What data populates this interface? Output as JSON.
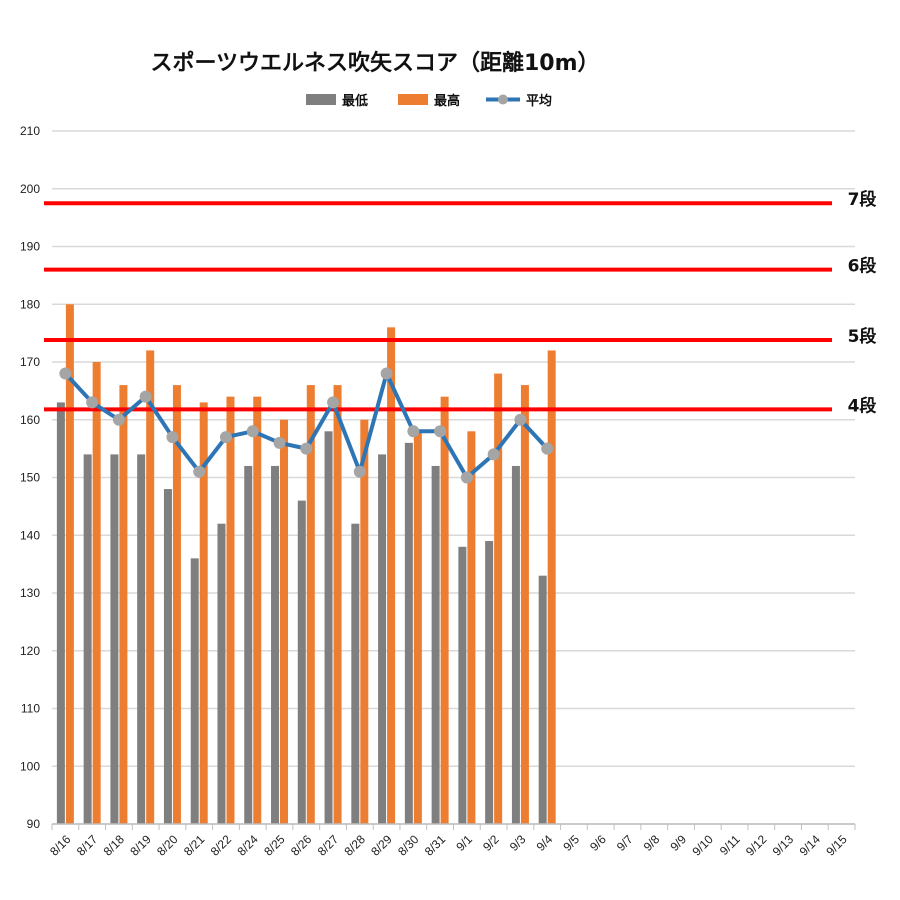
{
  "chart_data": {
    "type": "bar",
    "title": "スポーツウエルネス吹矢スコア（距離10m）",
    "categories": [
      "8/16",
      "8/17",
      "8/18",
      "8/19",
      "8/20",
      "8/21",
      "8/22",
      "8/24",
      "8/25",
      "8/26",
      "8/27",
      "8/28",
      "8/29",
      "8/30",
      "8/31",
      "9/1",
      "9/2",
      "9/3",
      "9/4",
      "9/5",
      "9/6",
      "9/7",
      "9/8",
      "9/9",
      "9/10",
      "9/11",
      "9/12",
      "9/13",
      "9/14",
      "9/15"
    ],
    "series": [
      {
        "name": "最低",
        "type": "bar",
        "color": "#7f7f7f",
        "values": [
          163,
          154,
          154,
          154,
          148,
          136,
          142,
          152,
          152,
          146,
          158,
          142,
          154,
          156,
          152,
          138,
          139,
          152,
          133,
          null,
          null,
          null,
          null,
          null,
          null,
          null,
          null,
          null,
          null,
          null
        ]
      },
      {
        "name": "最高",
        "type": "bar",
        "color": "#ed7d31",
        "values": [
          180,
          170,
          166,
          172,
          166,
          163,
          164,
          164,
          160,
          166,
          166,
          160,
          176,
          158,
          164,
          158,
          168,
          166,
          172,
          null,
          null,
          null,
          null,
          null,
          null,
          null,
          null,
          null,
          null,
          null
        ]
      },
      {
        "name": "平均",
        "type": "line",
        "color": "#2e75b6",
        "marker_color": "#a5a5a5",
        "values": [
          168,
          163,
          160,
          164,
          157,
          151,
          157,
          158,
          156,
          155,
          163,
          151,
          168,
          158,
          158,
          150,
          154,
          160,
          155,
          null,
          null,
          null,
          null,
          null,
          null,
          null,
          null,
          null,
          null,
          null
        ]
      }
    ],
    "ylim": [
      90,
      210
    ],
    "yticks": [
      90,
      100,
      110,
      120,
      130,
      140,
      150,
      160,
      170,
      180,
      190,
      200,
      210
    ],
    "grid": true,
    "legend": "top-center",
    "reference_lines": [
      {
        "label": "7段",
        "value": 197.5,
        "color": "#ff0000"
      },
      {
        "label": "6段",
        "value": 186,
        "color": "#ff0000"
      },
      {
        "label": "5段",
        "value": 173.8,
        "color": "#ff0000"
      },
      {
        "label": "4段",
        "value": 161.8,
        "color": "#ff0000"
      }
    ]
  }
}
